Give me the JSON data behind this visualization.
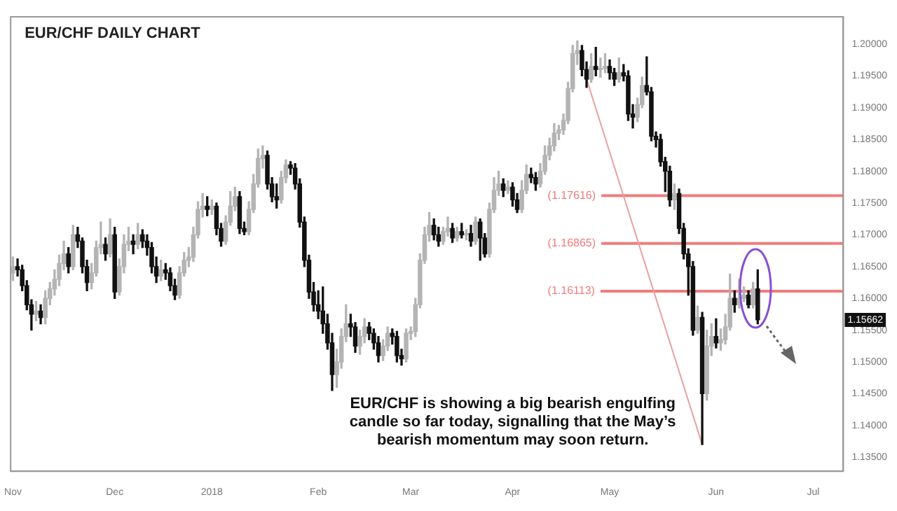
{
  "chart_data": {
    "type": "candlestick",
    "title": "EUR/CHF DAILY CHART",
    "categories": [
      "Nov",
      null,
      null,
      null,
      null,
      null,
      null,
      null,
      null,
      null,
      null,
      null,
      null,
      null,
      null,
      null,
      null,
      null,
      null,
      null,
      null,
      null,
      "Dec",
      null,
      null,
      null,
      null,
      null,
      null,
      null,
      null,
      null,
      null,
      null,
      null,
      null,
      null,
      null,
      null,
      null,
      null,
      null,
      null,
      "2018",
      null,
      null,
      null,
      null,
      null,
      null,
      null,
      null,
      null,
      null,
      null,
      null,
      null,
      null,
      null,
      null,
      null,
      null,
      null,
      null,
      null,
      null,
      "Feb",
      null,
      null,
      null,
      null,
      null,
      null,
      null,
      null,
      null,
      null,
      null,
      null,
      null,
      null,
      null,
      null,
      null,
      null,
      null,
      "Mar",
      null,
      null,
      null,
      null,
      null,
      null,
      null,
      null,
      null,
      null,
      null,
      null,
      null,
      null,
      null,
      null,
      null,
      null,
      null,
      null,
      null,
      "Apr",
      null,
      null,
      null,
      null,
      null,
      null,
      null,
      null,
      null,
      null,
      null,
      null,
      null,
      null,
      null,
      null,
      null,
      null,
      null,
      null,
      "May",
      null,
      null,
      null,
      null,
      null,
      null,
      null,
      null,
      null,
      null,
      null,
      null,
      null,
      null,
      null,
      null,
      null,
      null,
      null,
      null,
      null,
      null,
      "Jun",
      null,
      null,
      null,
      null,
      null,
      null,
      null,
      null,
      null,
      null,
      null,
      null,
      null,
      null,
      null,
      null,
      null,
      null,
      null,
      null,
      "Jul",
      null,
      null,
      null,
      null,
      null,
      null
    ],
    "ohlc": [
      [
        1.164,
        1.1665,
        1.1628,
        1.165
      ],
      [
        1.165,
        1.1662,
        1.1635,
        1.1645
      ],
      [
        1.1645,
        1.1652,
        1.1612,
        1.162
      ],
      [
        1.162,
        1.1628,
        1.1582,
        1.159
      ],
      [
        1.159,
        1.1598,
        1.155,
        1.1575
      ],
      [
        1.1575,
        1.1595,
        1.1565,
        1.158
      ],
      [
        1.158,
        1.159,
        1.156,
        1.157
      ],
      [
        1.157,
        1.1612,
        1.156,
        1.16
      ],
      [
        1.16,
        1.1625,
        1.159,
        1.1615
      ],
      [
        1.1615,
        1.1645,
        1.1605,
        1.163
      ],
      [
        1.163,
        1.1668,
        1.162,
        1.1655
      ],
      [
        1.1655,
        1.169,
        1.1645,
        1.167
      ],
      [
        1.167,
        1.168,
        1.164,
        1.165
      ],
      [
        1.165,
        1.1715,
        1.1645,
        1.17
      ],
      [
        1.17,
        1.1712,
        1.168,
        1.169
      ],
      [
        1.169,
        1.1695,
        1.164,
        1.165
      ],
      [
        1.165,
        1.166,
        1.1612,
        1.1625
      ],
      [
        1.1625,
        1.1655,
        1.1615,
        1.164
      ],
      [
        1.164,
        1.169,
        1.1635,
        1.168
      ],
      [
        1.168,
        1.172,
        1.167,
        1.1685
      ],
      [
        1.1685,
        1.1695,
        1.166,
        1.167
      ],
      [
        1.167,
        1.1725,
        1.1665,
        1.17
      ],
      [
        1.17,
        1.1712,
        1.16,
        1.161
      ],
      [
        1.161,
        1.1662,
        1.1605,
        1.165
      ],
      [
        1.165,
        1.17,
        1.164,
        1.1685
      ],
      [
        1.1685,
        1.1712,
        1.1675,
        1.169
      ],
      [
        1.169,
        1.17,
        1.167,
        1.1685
      ],
      [
        1.1685,
        1.1718,
        1.1678,
        1.17
      ],
      [
        1.17,
        1.1708,
        1.168,
        1.169
      ],
      [
        1.169,
        1.17,
        1.1668,
        1.168
      ],
      [
        1.168,
        1.1688,
        1.164,
        1.165
      ],
      [
        1.165,
        1.1665,
        1.1625,
        1.1635
      ],
      [
        1.1635,
        1.166,
        1.1628,
        1.1645
      ],
      [
        1.1645,
        1.1655,
        1.163,
        1.164
      ],
      [
        1.164,
        1.1648,
        1.1612,
        1.162
      ],
      [
        1.162,
        1.163,
        1.1598,
        1.1605
      ],
      [
        1.1605,
        1.165,
        1.16,
        1.164
      ],
      [
        1.164,
        1.1672,
        1.1635,
        1.166
      ],
      [
        1.166,
        1.168,
        1.165,
        1.1665
      ],
      [
        1.1665,
        1.1712,
        1.1658,
        1.17
      ],
      [
        1.17,
        1.1752,
        1.1695,
        1.174
      ],
      [
        1.174,
        1.1765,
        1.1728,
        1.1745
      ],
      [
        1.1745,
        1.176,
        1.173,
        1.174
      ],
      [
        1.174,
        1.1755,
        1.1732,
        1.1745
      ],
      [
        1.1745,
        1.175,
        1.17,
        1.171
      ],
      [
        1.171,
        1.1718,
        1.1682,
        1.169
      ],
      [
        1.169,
        1.173,
        1.1685,
        1.172
      ],
      [
        1.172,
        1.1768,
        1.1715,
        1.1745
      ],
      [
        1.1745,
        1.1775,
        1.1738,
        1.176
      ],
      [
        1.176,
        1.1768,
        1.1702,
        1.171
      ],
      [
        1.171,
        1.172,
        1.17,
        1.1705
      ],
      [
        1.1705,
        1.1752,
        1.17,
        1.174
      ],
      [
        1.174,
        1.1795,
        1.1735,
        1.178
      ],
      [
        1.178,
        1.1835,
        1.1775,
        1.182
      ],
      [
        1.182,
        1.184,
        1.1805,
        1.1825
      ],
      [
        1.1825,
        1.1832,
        1.1772,
        1.178
      ],
      [
        1.178,
        1.179,
        1.1752,
        1.176
      ],
      [
        1.176,
        1.178,
        1.1742,
        1.1755
      ],
      [
        1.1755,
        1.18,
        1.175,
        1.179
      ],
      [
        1.179,
        1.1818,
        1.1782,
        1.181
      ],
      [
        1.181,
        1.1815,
        1.1795,
        1.1805
      ],
      [
        1.1805,
        1.1812,
        1.1772,
        1.178
      ],
      [
        1.178,
        1.1788,
        1.1712,
        1.172
      ],
      [
        1.172,
        1.1728,
        1.165,
        1.166
      ],
      [
        1.166,
        1.1668,
        1.16,
        1.161
      ],
      [
        1.161,
        1.1625,
        1.158,
        1.159
      ],
      [
        1.159,
        1.1612,
        1.1568,
        1.158
      ],
      [
        1.158,
        1.1618,
        1.1545,
        1.156
      ],
      [
        1.156,
        1.1575,
        1.152,
        1.153
      ],
      [
        1.153,
        1.1545,
        1.1455,
        1.148
      ],
      [
        1.148,
        1.152,
        1.146,
        1.15
      ],
      [
        1.15,
        1.1552,
        1.149,
        1.154
      ],
      [
        1.154,
        1.159,
        1.1532,
        1.156
      ],
      [
        1.156,
        1.1575,
        1.154,
        1.1555
      ],
      [
        1.1555,
        1.1562,
        1.1515,
        1.1525
      ],
      [
        1.1525,
        1.155,
        1.1512,
        1.154
      ],
      [
        1.154,
        1.1568,
        1.153,
        1.1555
      ],
      [
        1.1555,
        1.1562,
        1.1535,
        1.1545
      ],
      [
        1.1545,
        1.1552,
        1.152,
        1.153
      ],
      [
        1.153,
        1.154,
        1.15,
        1.151
      ],
      [
        1.151,
        1.1535,
        1.1502,
        1.1525
      ],
      [
        1.1525,
        1.1555,
        1.1518,
        1.1545
      ],
      [
        1.1545,
        1.1552,
        1.1528,
        1.154
      ],
      [
        1.154,
        1.1548,
        1.15,
        1.151
      ],
      [
        1.151,
        1.152,
        1.1495,
        1.1505
      ],
      [
        1.1505,
        1.1552,
        1.15,
        1.1545
      ],
      [
        1.1545,
        1.1555,
        1.1535,
        1.1548
      ],
      [
        1.1548,
        1.16,
        1.154,
        1.159
      ],
      [
        1.159,
        1.167,
        1.1585,
        1.166
      ],
      [
        1.166,
        1.1712,
        1.1655,
        1.17
      ],
      [
        1.17,
        1.1735,
        1.169,
        1.1715
      ],
      [
        1.1715,
        1.1725,
        1.1692,
        1.17
      ],
      [
        1.17,
        1.1712,
        1.1682,
        1.169
      ],
      [
        1.169,
        1.1712,
        1.1685,
        1.1705
      ],
      [
        1.1705,
        1.1728,
        1.1698,
        1.171
      ],
      [
        1.171,
        1.1718,
        1.1688,
        1.1695
      ],
      [
        1.1695,
        1.1712,
        1.169,
        1.1705
      ],
      [
        1.1705,
        1.1718,
        1.1695,
        1.17
      ],
      [
        1.17,
        1.1708,
        1.1692,
        1.1702
      ],
      [
        1.1702,
        1.1715,
        1.1682,
        1.169
      ],
      [
        1.169,
        1.1728,
        1.1685,
        1.172
      ],
      [
        1.172,
        1.1725,
        1.166,
        1.1695
      ],
      [
        1.1695,
        1.1702,
        1.1665,
        1.167
      ],
      [
        1.167,
        1.175,
        1.1665,
        1.174
      ],
      [
        1.174,
        1.179,
        1.1735,
        1.177
      ],
      [
        1.177,
        1.18,
        1.1762,
        1.178
      ],
      [
        1.178,
        1.1788,
        1.176,
        1.177
      ],
      [
        1.177,
        1.1785,
        1.1765,
        1.1775
      ],
      [
        1.1775,
        1.1782,
        1.1745,
        1.1755
      ],
      [
        1.1755,
        1.1765,
        1.1735,
        1.174
      ],
      [
        1.174,
        1.1785,
        1.1735,
        1.177
      ],
      [
        1.177,
        1.181,
        1.1765,
        1.1795
      ],
      [
        1.1795,
        1.1805,
        1.1782,
        1.179
      ],
      [
        1.179,
        1.1798,
        1.177,
        1.178
      ],
      [
        1.178,
        1.1812,
        1.1775,
        1.18
      ],
      [
        1.18,
        1.184,
        1.1795,
        1.1825
      ],
      [
        1.1825,
        1.1852,
        1.1818,
        1.184
      ],
      [
        1.184,
        1.1875,
        1.1832,
        1.186
      ],
      [
        1.186,
        1.1872,
        1.185,
        1.1865
      ],
      [
        1.1865,
        1.189,
        1.1858,
        1.188
      ],
      [
        1.188,
        1.194,
        1.1875,
        1.193
      ],
      [
        1.193,
        1.1998,
        1.1925,
        1.1985
      ],
      [
        1.1985,
        1.2005,
        1.1968,
        1.199
      ],
      [
        1.199,
        1.1998,
        1.195,
        1.196
      ],
      [
        1.196,
        1.1972,
        1.1932,
        1.1945
      ],
      [
        1.1945,
        1.1985,
        1.194,
        1.1965
      ],
      [
        1.1965,
        1.1995,
        1.195,
        1.196
      ],
      [
        1.196,
        1.1978,
        1.1948,
        1.1962
      ],
      [
        1.1962,
        1.1985,
        1.1955,
        1.1965
      ],
      [
        1.1965,
        1.1975,
        1.1945,
        1.1955
      ],
      [
        1.1955,
        1.1962,
        1.1935,
        1.1945
      ],
      [
        1.1945,
        1.1978,
        1.194,
        1.1955
      ],
      [
        1.1955,
        1.1968,
        1.1942,
        1.195
      ],
      [
        1.195,
        1.1958,
        1.188,
        1.189
      ],
      [
        1.189,
        1.1905,
        1.1868,
        1.1885
      ],
      [
        1.1885,
        1.1915,
        1.1878,
        1.1905
      ],
      [
        1.1905,
        1.1948,
        1.19,
        1.1935
      ],
      [
        1.1935,
        1.198,
        1.192,
        1.1925
      ],
      [
        1.1925,
        1.1932,
        1.1848,
        1.1855
      ],
      [
        1.1855,
        1.1862,
        1.1838,
        1.185
      ],
      [
        1.185,
        1.1858,
        1.1808,
        1.1815
      ],
      [
        1.1815,
        1.1822,
        1.1768,
        1.18
      ],
      [
        1.18,
        1.1808,
        1.1745,
        1.1755
      ],
      [
        1.1755,
        1.178,
        1.174,
        1.1765
      ],
      [
        1.1765,
        1.1772,
        1.1702,
        1.171
      ],
      [
        1.171,
        1.1718,
        1.1662,
        1.167
      ],
      [
        1.167,
        1.1678,
        1.1605,
        1.165
      ],
      [
        1.165,
        1.1658,
        1.1542,
        1.155
      ],
      [
        1.155,
        1.1588,
        1.1545,
        1.157
      ],
      [
        1.157,
        1.1578,
        1.137,
        1.145
      ],
      [
        1.145,
        1.155,
        1.144,
        1.1525
      ],
      [
        1.1525,
        1.156,
        1.151,
        1.154
      ],
      [
        1.154,
        1.1568,
        1.1522,
        1.153
      ],
      [
        1.153,
        1.1552,
        1.1518,
        1.1535
      ],
      [
        1.1535,
        1.1575,
        1.1528,
        1.1555
      ],
      [
        1.1555,
        1.1638,
        1.155,
        1.16
      ],
      [
        1.16,
        1.1612,
        1.1578,
        1.159
      ],
      [
        1.159,
        1.163,
        1.1585,
        1.16
      ],
      [
        1.16,
        1.1618,
        1.1595,
        1.1605
      ],
      [
        1.1605,
        1.1612,
        1.1585,
        1.159
      ],
      [
        1.159,
        1.1625,
        1.1585,
        1.1615
      ],
      [
        1.1615,
        1.1645,
        1.156,
        1.15662
      ],
      null,
      null,
      null,
      null,
      null,
      null,
      null,
      null,
      null,
      null,
      null,
      null,
      null,
      null,
      null,
      null,
      null,
      null
    ],
    "colors": [
      "#b4b4b4",
      "#111111",
      "#111111",
      "#111111",
      "#111111",
      "#b4b4b4",
      "#111111",
      "#b4b4b4",
      "#b4b4b4",
      "#b4b4b4",
      "#b4b4b4",
      "#b4b4b4",
      "#111111",
      "#b4b4b4",
      "#111111",
      "#111111",
      "#111111",
      "#b4b4b4",
      "#b4b4b4",
      "#b4b4b4",
      "#111111",
      "#b4b4b4",
      "#111111",
      "#b4b4b4",
      "#b4b4b4",
      "#b4b4b4",
      "#111111",
      "#b4b4b4",
      "#111111",
      "#111111",
      "#111111",
      "#111111",
      "#b4b4b4",
      "#111111",
      "#111111",
      "#111111",
      "#b4b4b4",
      "#b4b4b4",
      "#b4b4b4",
      "#b4b4b4",
      "#b4b4b4",
      "#b4b4b4",
      "#111111",
      "#b4b4b4",
      "#111111",
      "#111111",
      "#b4b4b4",
      "#b4b4b4",
      "#b4b4b4",
      "#111111",
      "#111111",
      "#b4b4b4",
      "#b4b4b4",
      "#b4b4b4",
      "#b4b4b4",
      "#111111",
      "#111111",
      "#111111",
      "#b4b4b4",
      "#b4b4b4",
      "#111111",
      "#111111",
      "#111111",
      "#111111",
      "#111111",
      "#111111",
      "#111111",
      "#111111",
      "#111111",
      "#111111",
      "#b4b4b4",
      "#b4b4b4",
      "#b4b4b4",
      "#111111",
      "#111111",
      "#b4b4b4",
      "#b4b4b4",
      "#111111",
      "#111111",
      "#111111",
      "#b4b4b4",
      "#b4b4b4",
      "#111111",
      "#111111",
      "#111111",
      "#b4b4b4",
      "#b4b4b4",
      "#b4b4b4",
      "#b4b4b4",
      "#b4b4b4",
      "#b4b4b4",
      "#111111",
      "#111111",
      "#b4b4b4",
      "#b4b4b4",
      "#111111",
      "#b4b4b4",
      "#111111",
      "#b4b4b4",
      "#111111",
      "#b4b4b4",
      "#111111",
      "#111111",
      "#b4b4b4",
      "#b4b4b4",
      "#b4b4b4",
      "#111111",
      "#b4b4b4",
      "#111111",
      "#111111",
      "#b4b4b4",
      "#b4b4b4",
      "#111111",
      "#111111",
      "#b4b4b4",
      "#b4b4b4",
      "#b4b4b4",
      "#b4b4b4",
      "#b4b4b4",
      "#b4b4b4",
      "#b4b4b4",
      "#b4b4b4",
      "#b4b4b4",
      "#111111",
      "#111111",
      "#b4b4b4",
      "#111111",
      "#b4b4b4",
      "#b4b4b4",
      "#111111",
      "#111111",
      "#b4b4b4",
      "#111111",
      "#111111",
      "#111111",
      "#b4b4b4",
      "#b4b4b4",
      "#111111",
      "#111111",
      "#111111",
      "#111111",
      "#111111",
      "#111111",
      "#b4b4b4",
      "#111111",
      "#111111",
      "#111111",
      "#111111",
      "#b4b4b4",
      "#111111",
      "#b4b4b4",
      "#b4b4b4",
      "#111111",
      "#b4b4b4",
      "#b4b4b4",
      "#b4b4b4",
      "#111111",
      "#b4b4b4",
      "#b4b4b4",
      "#111111",
      "#b4b4b4",
      "#111111",
      null,
      null,
      null,
      null,
      null,
      null,
      null,
      null,
      null,
      null,
      null,
      null,
      null,
      null,
      null,
      null,
      null,
      null
    ],
    "series": [
      {
        "type": "line",
        "color": "#e8a0a0",
        "values": [
          null,
          null,
          null,
          null,
          null,
          null,
          null,
          null,
          null,
          null,
          null,
          null,
          null,
          null,
          null,
          null,
          null,
          null,
          null,
          null,
          null,
          null,
          null,
          null,
          null,
          null,
          null,
          null,
          null,
          null,
          null,
          null,
          null,
          null,
          null,
          null,
          null,
          null,
          null,
          null,
          null,
          null,
          null,
          null,
          null,
          null,
          null,
          null,
          null,
          null,
          null,
          null,
          null,
          null,
          null,
          null,
          null,
          null,
          null,
          null,
          null,
          null,
          null,
          null,
          null,
          null,
          null,
          null,
          null,
          null,
          null,
          null,
          null,
          null,
          null,
          null,
          null,
          null,
          null,
          null,
          null,
          null,
          null,
          null,
          null,
          null,
          null,
          null,
          null,
          null,
          null,
          null,
          null,
          null,
          null,
          null,
          null,
          null,
          null,
          null,
          null,
          null,
          null,
          null,
          null,
          null,
          null,
          null,
          null,
          null,
          null,
          null,
          null,
          null,
          null,
          null,
          null,
          null,
          null,
          null,
          null,
          null,
          null,
          null,
          1.1945,
          null,
          null,
          null,
          null,
          null,
          null,
          null,
          null,
          null,
          null,
          null,
          null,
          null,
          null,
          null,
          null,
          null,
          null,
          null,
          null,
          null,
          null,
          null,
          null,
          1.137,
          null,
          null,
          null,
          null,
          null,
          null,
          null,
          null,
          null,
          null,
          null,
          null,
          null,
          null,
          null,
          null,
          null,
          null,
          null,
          null,
          null,
          null,
          null,
          null,
          null,
          null,
          null,
          null,
          null,
          null
        ]
      }
    ],
    "ylim": [
      1.1328,
      1.2043
    ],
    "yticks": [
      {
        "value": 1.135,
        "label": "1.13500"
      },
      {
        "value": 1.14,
        "label": "1.14000"
      },
      {
        "value": 1.145,
        "label": "1.14500"
      },
      {
        "value": 1.15,
        "label": "1.15000"
      },
      {
        "value": 1.155,
        "label": "1.15500"
      },
      {
        "value": 1.16,
        "label": "1.16000"
      },
      {
        "value": 1.165,
        "label": "1.16500"
      },
      {
        "value": 1.17,
        "label": "1.17000"
      },
      {
        "value": 1.175,
        "label": "1.17500"
      },
      {
        "value": 1.18,
        "label": "1.18000"
      },
      {
        "value": 1.185,
        "label": "1.18500"
      },
      {
        "value": 1.19,
        "label": "1.19000"
      },
      {
        "value": 1.195,
        "label": "1.19500"
      },
      {
        "value": 1.2,
        "label": "1.20000"
      }
    ],
    "ref_lines": [
      {
        "axis": "y",
        "value": 1.17616,
        "label": "(1.17616)",
        "color": "#f07c7c"
      },
      {
        "axis": "y",
        "value": 1.16865,
        "label": "(1.16865)",
        "color": "#f07c7c"
      },
      {
        "axis": "y",
        "value": 1.16113,
        "label": "(1.16113)",
        "color": "#f07c7c"
      }
    ],
    "annotations": [
      "EUR/CHF is showing a big bearish engulfing\ncandle so far today, signalling that the May’s\nbearish momentum may soon return.",
      {
        "text": "1.15662",
        "y": 1.15662
      }
    ]
  }
}
